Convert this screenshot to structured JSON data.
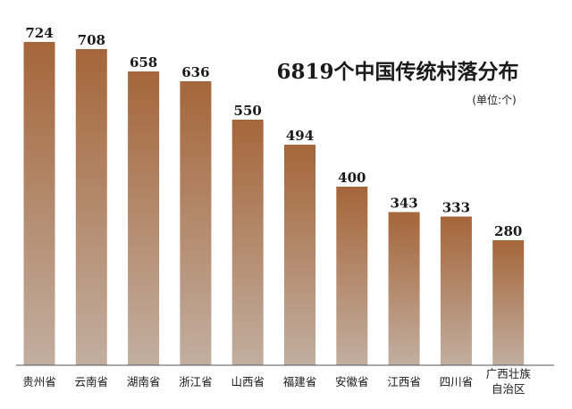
{
  "chart_data": {
    "type": "bar",
    "title": "6819个中国传统村落分布",
    "unit": "(单位:个)",
    "categories": [
      "贵州省",
      "云南省",
      "湖南省",
      "浙江省",
      "山西省",
      "福建省",
      "安徽省",
      "江西省",
      "四川省",
      "广西壮族\n自治区"
    ],
    "values": [
      724,
      708,
      658,
      636,
      550,
      494,
      400,
      343,
      333,
      280
    ],
    "xlabel": "",
    "ylabel": "",
    "ylim": [
      0,
      724
    ],
    "grid": false,
    "colors": {
      "bar_top": "#a5663a",
      "bar_bottom": "#c2aea0",
      "axis": "#555555"
    }
  }
}
